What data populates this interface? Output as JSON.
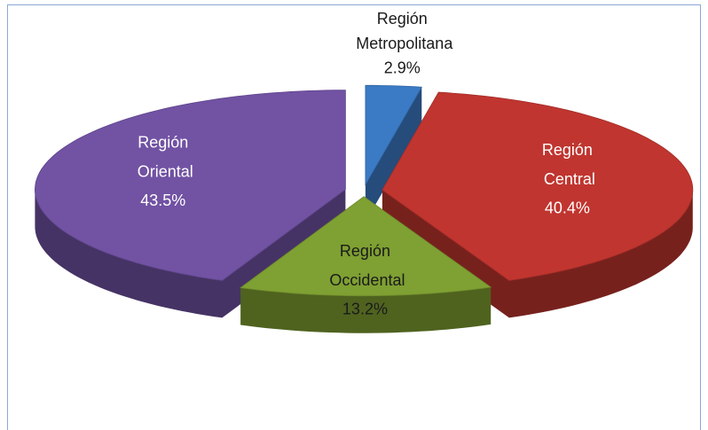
{
  "chart_data": {
    "type": "pie",
    "categories": [
      "Región Metropolitana",
      "Región Central",
      "Región Occidental",
      "Región Oriental"
    ],
    "values": [
      2.9,
      40.4,
      13.2,
      43.5
    ],
    "value_labels": [
      "2.9%",
      "40.4%",
      "13.2%",
      "43.5%"
    ],
    "colors": [
      "#3b7ac4",
      "#c0352f",
      "#7fa032",
      "#7152a3"
    ],
    "label_colors": [
      "#1a1a1a",
      "#ffffff",
      "#1a1a1a",
      "#ffffff"
    ]
  }
}
